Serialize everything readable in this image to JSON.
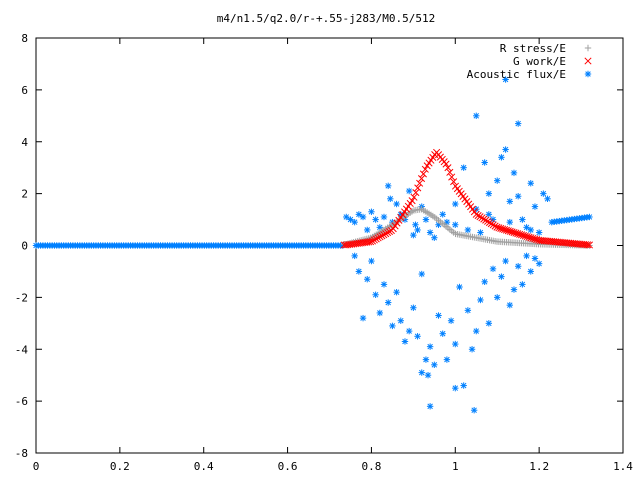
{
  "chart_data": {
    "type": "scatter",
    "title": "m4/n1.5/q2.0/r-+.55-j283/M0.5/512",
    "xlabel": "",
    "ylabel": "",
    "xlim": [
      0,
      1.4
    ],
    "ylim": [
      -8,
      8
    ],
    "xticks": [
      "0",
      "0.2",
      "0.4",
      "0.6",
      "0.8",
      "1",
      "1.2",
      "1.4"
    ],
    "yticks": [
      "-8",
      "-6",
      "-4",
      "-2",
      "0",
      "2",
      "4",
      "6",
      "8"
    ],
    "xtick_values": [
      0,
      0.2,
      0.4,
      0.6,
      0.8,
      1.0,
      1.2,
      1.4
    ],
    "ytick_values": [
      -8,
      -6,
      -4,
      -2,
      0,
      2,
      4,
      6,
      8
    ],
    "legend_placement": "top-right",
    "grid": false,
    "series": [
      {
        "name": "R stress/E",
        "marker": "plus",
        "color": "#a0a0a0",
        "x_range": [
          0.735,
          1.32
        ],
        "peak_x": 0.92,
        "peak_y": 1.4,
        "sample_points": [
          [
            0.74,
            0.05
          ],
          [
            0.8,
            0.3
          ],
          [
            0.85,
            0.8
          ],
          [
            0.9,
            1.35
          ],
          [
            0.92,
            1.4
          ],
          [
            0.95,
            1.1
          ],
          [
            1.0,
            0.45
          ],
          [
            1.1,
            0.15
          ],
          [
            1.2,
            0.05
          ],
          [
            1.32,
            0.0
          ]
        ]
      },
      {
        "name": "G work/E",
        "marker": "cross",
        "color": "#ff0000",
        "x_range": [
          0.735,
          1.32
        ],
        "peak_x": 0.955,
        "peak_y": 3.6,
        "sample_points": [
          [
            0.74,
            0.02
          ],
          [
            0.8,
            0.15
          ],
          [
            0.85,
            0.6
          ],
          [
            0.9,
            1.8
          ],
          [
            0.93,
            3.0
          ],
          [
            0.955,
            3.6
          ],
          [
            0.98,
            3.1
          ],
          [
            1.0,
            2.3
          ],
          [
            1.05,
            1.2
          ],
          [
            1.1,
            0.7
          ],
          [
            1.2,
            0.2
          ],
          [
            1.32,
            0.02
          ]
        ]
      },
      {
        "name": "Acoustic flux/E",
        "marker": "star",
        "color": "#0080ff",
        "flat_x_range": [
          0,
          0.735
        ],
        "flat_y": 0.0,
        "right_wing_x_range": [
          1.23,
          1.32
        ],
        "right_wing_y_range": [
          0.9,
          1.1
        ],
        "scatter_points": [
          [
            0.74,
            1.1
          ],
          [
            0.75,
            1.0
          ],
          [
            0.76,
            0.9
          ],
          [
            0.77,
            1.2
          ],
          [
            0.78,
            1.1
          ],
          [
            0.79,
            0.6
          ],
          [
            0.8,
            1.3
          ],
          [
            0.81,
            1.0
          ],
          [
            0.82,
            0.7
          ],
          [
            0.83,
            1.1
          ],
          [
            0.84,
            2.3
          ],
          [
            0.845,
            1.8
          ],
          [
            0.85,
            0.9
          ],
          [
            0.86,
            1.6
          ],
          [
            0.87,
            1.2
          ],
          [
            0.88,
            1.0
          ],
          [
            0.89,
            2.1
          ],
          [
            0.9,
            0.4
          ],
          [
            0.905,
            0.8
          ],
          [
            0.91,
            0.6
          ],
          [
            0.92,
            1.5
          ],
          [
            0.93,
            1.0
          ],
          [
            0.94,
            0.5
          ],
          [
            0.95,
            0.3
          ],
          [
            0.96,
            0.8
          ],
          [
            0.97,
            1.2
          ],
          [
            0.98,
            0.9
          ],
          [
            1.0,
            1.6
          ],
          [
            1.02,
            3.0
          ],
          [
            1.05,
            1.4
          ],
          [
            1.06,
            0.5
          ],
          [
            1.07,
            3.2
          ],
          [
            1.08,
            2.0
          ],
          [
            1.09,
            1.0
          ],
          [
            1.1,
            2.5
          ],
          [
            1.11,
            3.4
          ],
          [
            1.12,
            3.7
          ],
          [
            1.13,
            1.7
          ],
          [
            1.14,
            2.8
          ],
          [
            1.15,
            1.9
          ],
          [
            1.16,
            1.0
          ],
          [
            1.17,
            0.7
          ],
          [
            1.18,
            2.4
          ],
          [
            1.19,
            1.5
          ],
          [
            1.2,
            0.5
          ],
          [
            1.21,
            2.0
          ],
          [
            1.22,
            1.8
          ],
          [
            1.05,
            5.0
          ],
          [
            1.12,
            6.4
          ],
          [
            1.15,
            4.7
          ],
          [
            0.76,
            -0.4
          ],
          [
            0.77,
            -1.0
          ],
          [
            0.78,
            -2.8
          ],
          [
            0.79,
            -1.3
          ],
          [
            0.8,
            -0.6
          ],
          [
            0.81,
            -1.9
          ],
          [
            0.82,
            -2.6
          ],
          [
            0.83,
            -1.5
          ],
          [
            0.84,
            -2.2
          ],
          [
            0.85,
            -3.1
          ],
          [
            0.86,
            -1.8
          ],
          [
            0.87,
            -2.9
          ],
          [
            0.88,
            -3.7
          ],
          [
            0.89,
            -3.3
          ],
          [
            0.9,
            -2.4
          ],
          [
            0.91,
            -3.5
          ],
          [
            0.92,
            -1.1
          ],
          [
            0.93,
            -4.4
          ],
          [
            0.94,
            -3.9
          ],
          [
            0.95,
            -4.6
          ],
          [
            0.96,
            -2.7
          ],
          [
            0.97,
            -3.4
          ],
          [
            0.98,
            -4.4
          ],
          [
            0.99,
            -2.9
          ],
          [
            1.0,
            -3.8
          ],
          [
            1.01,
            -1.6
          ],
          [
            1.02,
            -5.4
          ],
          [
            1.03,
            -2.5
          ],
          [
            1.04,
            -4.0
          ],
          [
            1.05,
            -3.3
          ],
          [
            1.06,
            -2.1
          ],
          [
            1.07,
            -1.4
          ],
          [
            1.08,
            -3.0
          ],
          [
            1.09,
            -0.9
          ],
          [
            1.1,
            -2.0
          ],
          [
            1.11,
            -1.2
          ],
          [
            1.12,
            -0.6
          ],
          [
            1.13,
            -2.3
          ],
          [
            1.14,
            -1.7
          ],
          [
            1.15,
            -0.8
          ],
          [
            1.16,
            -1.5
          ],
          [
            1.17,
            -0.4
          ],
          [
            1.18,
            -1.0
          ],
          [
            1.19,
            -0.5
          ],
          [
            1.2,
            -0.7
          ],
          [
            0.935,
            -5.0
          ],
          [
            0.94,
            -6.2
          ],
          [
            1.045,
            -6.35
          ],
          [
            1.0,
            -5.5
          ],
          [
            0.92,
            -4.9
          ],
          [
            1.0,
            0.8
          ],
          [
            1.03,
            0.6
          ],
          [
            1.08,
            1.2
          ],
          [
            1.13,
            0.9
          ],
          [
            1.18,
            0.6
          ]
        ]
      }
    ]
  }
}
